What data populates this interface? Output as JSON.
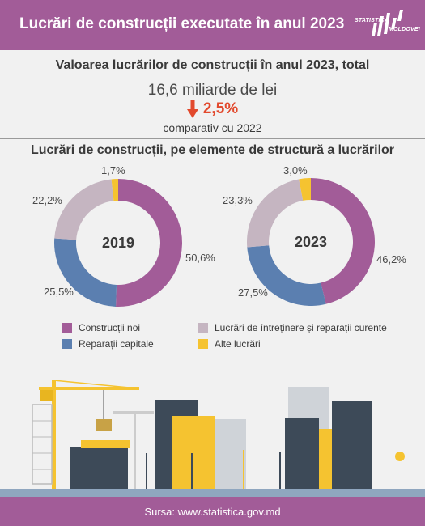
{
  "header": {
    "title": "Lucrări de construcții executate în anul 2023",
    "logo_line1": "STATISTICA",
    "logo_line2": "MOLDOVEI"
  },
  "summary": {
    "title": "Valoarea lucrărilor de construcții în anul 2023, total",
    "value": "16,6 miliarde de lei",
    "change": "2,5%",
    "change_direction": "down",
    "comparison": "comparativ cu 2022"
  },
  "structure": {
    "title": "Lucrări de construcții, pe elemente de structură a lucrărilor"
  },
  "colors": {
    "header": "#a25c98",
    "constructii_noi": "#a25c98",
    "reparatii_capitale": "#5b7fb0",
    "intretinere": "#c5b5c1",
    "alte": "#f5c330",
    "decrease": "#e2492d"
  },
  "chart_data": [
    {
      "type": "pie",
      "center_label": "2019",
      "categories": [
        "Construcții noi",
        "Reparații capitale",
        "Lucrări de întreținere și reparații curente",
        "Alte lucrări"
      ],
      "values": [
        50.6,
        25.5,
        22.2,
        1.7
      ],
      "labels": [
        "50,6%",
        "25,5%",
        "22,2%",
        "1,7%"
      ]
    },
    {
      "type": "pie",
      "center_label": "2023",
      "categories": [
        "Construcții noi",
        "Reparații capitale",
        "Lucrări de întreținere și reparații curente",
        "Alte lucrări"
      ],
      "values": [
        46.2,
        27.5,
        23.3,
        3.0
      ],
      "labels": [
        "46,2%",
        "27,5%",
        "23,3%",
        "3,0%"
      ]
    }
  ],
  "legend": {
    "items": [
      "Construcții noi",
      "Reparații capitale",
      "Lucrări de întreținere și reparații curente",
      "Alte lucrări"
    ]
  },
  "footer": {
    "source": "Sursa: www.statistica.gov.md"
  }
}
